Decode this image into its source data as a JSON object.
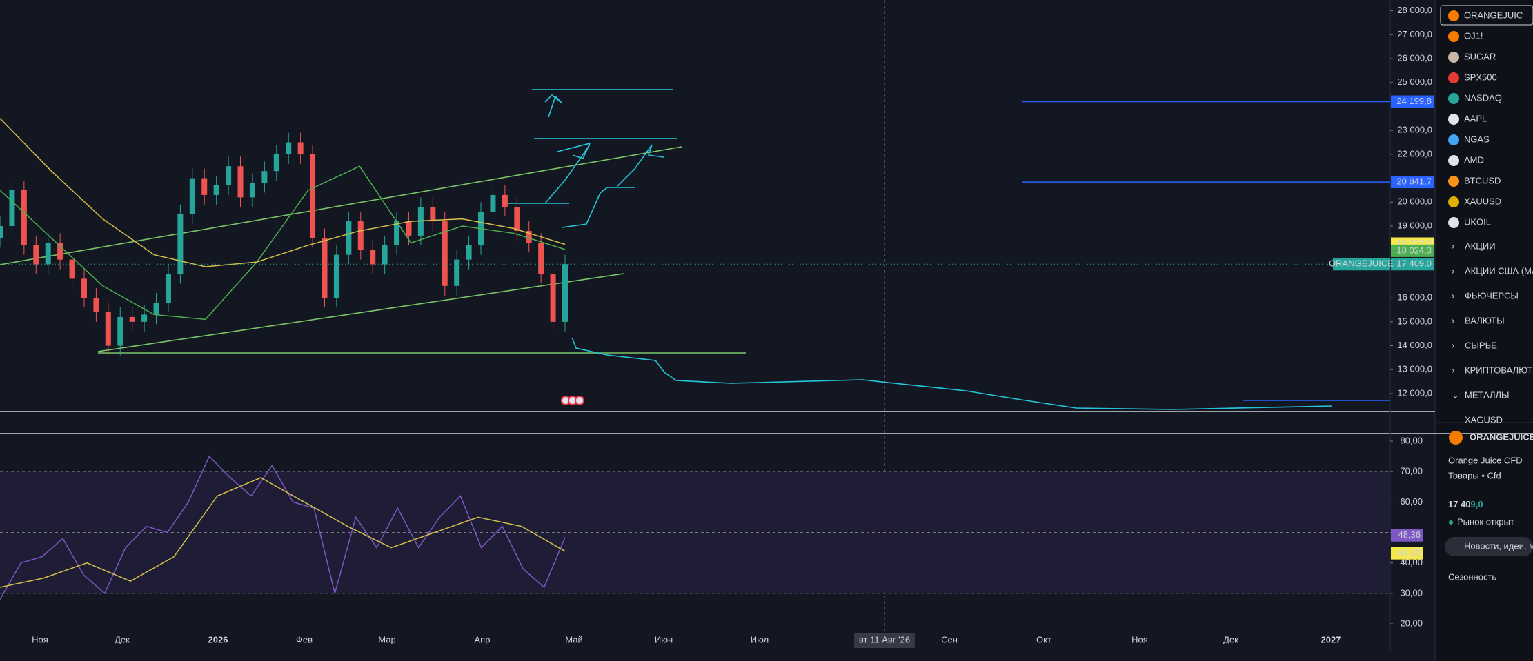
{
  "price_axis": {
    "ylim": [
      12000,
      28000
    ],
    "ticks": [
      {
        "value": 28000,
        "label": "28 000,0"
      },
      {
        "value": 27000,
        "label": "27 000,0"
      },
      {
        "value": 26000,
        "label": "26 000,0"
      },
      {
        "value": 25000,
        "label": "25 000,0"
      },
      {
        "value": 23000,
        "label": "23 000,0"
      },
      {
        "value": 22000,
        "label": "22 000,0"
      },
      {
        "value": 20000,
        "label": "20 000,0"
      },
      {
        "value": 19000,
        "label": "19 000,0"
      },
      {
        "value": 16000,
        "label": "16 000,0"
      },
      {
        "value": 15000,
        "label": "15 000,0"
      },
      {
        "value": 14000,
        "label": "14 000,0"
      },
      {
        "value": 13000,
        "label": "13 000,0"
      },
      {
        "value": 12000,
        "label": "12 000,0"
      }
    ]
  },
  "time_axis": [
    "Ноя",
    "Дек",
    "2026",
    "Фев",
    "Мар",
    "Апр",
    "Май",
    "Июн",
    "Июл",
    "Сен",
    "Окт",
    "Ноя",
    "Дек",
    "2027"
  ],
  "crosshair_label": "вт 11 Авг '26",
  "candles": {
    "open": [
      18500,
      19000,
      20500,
      18200,
      17400,
      18300,
      17600,
      16800,
      16000,
      15400,
      14000,
      15200,
      15000,
      15300,
      15800,
      17000,
      19500,
      21000,
      20300,
      20700,
      21500,
      20200,
      20800,
      21300,
      22000,
      22500,
      22000,
      18500,
      16000,
      17800,
      19200,
      18000,
      17400,
      18200,
      19200,
      18600,
      19800,
      19200,
      16500,
      17600,
      18200,
      19600,
      20300,
      19800,
      18800,
      18300,
      17000,
      15000
    ],
    "high": [
      19400,
      20900,
      20900,
      18600,
      18700,
      18700,
      18000,
      17200,
      16400,
      15800,
      15600,
      15600,
      15700,
      16200,
      17400,
      19900,
      21400,
      21400,
      21100,
      21900,
      21900,
      21200,
      21700,
      22400,
      22900,
      22900,
      22400,
      18900,
      18200,
      19600,
      19600,
      18400,
      18600,
      19600,
      19600,
      20200,
      20200,
      19600,
      18000,
      18600,
      20000,
      20700,
      20700,
      20200,
      19200,
      18700,
      17400,
      17800
    ],
    "low": [
      18100,
      18600,
      17800,
      17000,
      17000,
      17200,
      16400,
      15600,
      15000,
      13600,
      13600,
      14600,
      14600,
      14900,
      15400,
      16600,
      19100,
      19900,
      19900,
      20300,
      19800,
      19800,
      20400,
      20900,
      21600,
      21600,
      18100,
      15600,
      15600,
      17400,
      17600,
      17000,
      17000,
      17800,
      18200,
      18200,
      18800,
      16100,
      16100,
      17200,
      17800,
      19200,
      19400,
      18400,
      17900,
      16600,
      14600,
      14600
    ],
    "close": [
      19000,
      20500,
      18200,
      17400,
      18300,
      17600,
      16800,
      16000,
      15400,
      14000,
      15200,
      15000,
      15300,
      15800,
      17000,
      19500,
      21000,
      20300,
      20700,
      21500,
      20200,
      20800,
      21300,
      22000,
      22500,
      22000,
      18500,
      16000,
      17800,
      19200,
      18000,
      17400,
      18200,
      19200,
      18600,
      19800,
      19200,
      16500,
      17600,
      18200,
      19600,
      20300,
      19800,
      18800,
      18300,
      17000,
      15000,
      17409
    ]
  },
  "ma_fast": [
    20500,
    18500,
    16500,
    15300,
    15100,
    17500,
    20500,
    21500,
    18300,
    19000,
    18700,
    18024.3
  ],
  "ma_slow": [
    23500,
    21300,
    19300,
    17800,
    17300,
    17500,
    18200,
    18800,
    19200,
    19300,
    18900,
    18237
  ],
  "levels": [
    {
      "value": 24199.8,
      "label": "24 199,8"
    },
    {
      "value": 20841.7,
      "label": "20 841,7"
    }
  ],
  "price_tags": [
    {
      "value": 18237,
      "label": "18 237,0"
    },
    {
      "value": 18024.3,
      "label": "18 024,3"
    },
    {
      "value": 17409,
      "label": "17 409,0"
    }
  ],
  "symbol_tag": "ORANGEJUICE",
  "rsi": {
    "ylim": [
      20,
      80
    ],
    "ticks": [
      {
        "value": 80,
        "label": "80,00"
      },
      {
        "value": 70,
        "label": "70,00"
      },
      {
        "value": 60,
        "label": "60,00"
      },
      {
        "value": 50,
        "label": "50,00"
      },
      {
        "value": 40,
        "label": "40,00"
      },
      {
        "value": 30,
        "label": "30,00"
      },
      {
        "value": 20,
        "label": "20,00"
      }
    ],
    "band": [
      30,
      70
    ],
    "middle": 50,
    "values": [
      28,
      40,
      42,
      48,
      36,
      30,
      45,
      52,
      50,
      60,
      75,
      68,
      62,
      72,
      60,
      58,
      30,
      55,
      45,
      58,
      45,
      55,
      62,
      45,
      52,
      38,
      32,
      48.36
    ],
    "ma": [
      32,
      35,
      40,
      34,
      42,
      62,
      68,
      60,
      52,
      45,
      50,
      55,
      52,
      43.85
    ],
    "tags": [
      {
        "value": 48.36,
        "label": "48,36"
      },
      {
        "value": 43.85,
        "label": "43,85"
      }
    ]
  },
  "watchlist": [
    "ORANGEJUIC",
    "OJ1!",
    "SUGAR",
    "SPX500",
    "NASDAQ",
    "AAPL",
    "NGAS",
    "AMD",
    "BTCUSD",
    "XAUUSD",
    "UKOIL"
  ],
  "sections": [
    "АКЦИИ",
    "АКЦИИ США (МАМО",
    "ФЬЮЧЕРСЫ",
    "ВАЛЮТЫ",
    "СЫРЬЕ",
    "КРИПТОВАЛЮТЫ",
    "МЕТАЛЛЫ",
    "XAGUSD"
  ],
  "details": {
    "symbol": "ORANGEJUICE",
    "name": "Orange Juice CFD",
    "category": "Товары • Cfd",
    "price_main": "17 40",
    "price_frac": "9,0",
    "status": "Рынок открыт",
    "news": "Новости, идеи, м",
    "seasonality": "Сезонность"
  }
}
